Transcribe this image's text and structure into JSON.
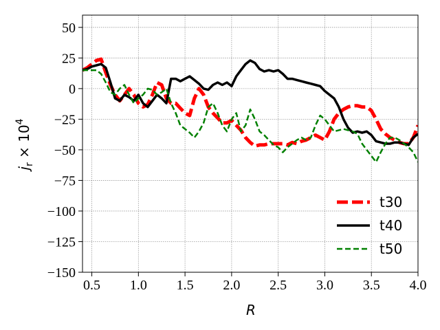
{
  "chart_data": {
    "type": "line",
    "title": "",
    "xlabel": "R",
    "ylabel_main": "j",
    "ylabel_sub": "r",
    "ylabel_tail": " × 10",
    "ylabel_exp": "4",
    "xlim": [
      0.4,
      4.0
    ],
    "ylim": [
      -150,
      60
    ],
    "xticks": [
      0.5,
      1.0,
      1.5,
      2.0,
      2.5,
      3.0,
      3.5,
      4.0
    ],
    "xtick_labels": [
      "0.5",
      "1.0",
      "1.5",
      "2.0",
      "2.5",
      "3.0",
      "3.5",
      "4.0"
    ],
    "yticks": [
      50,
      25,
      0,
      -25,
      -50,
      -75,
      -100,
      -125,
      -150
    ],
    "ytick_labels": [
      "50",
      "25",
      "0",
      "−25",
      "−50",
      "−75",
      "−100",
      "−125",
      "−150"
    ],
    "grid": true,
    "legend_position": "lower-right",
    "series": [
      {
        "name": "t30",
        "color": "#ff0000",
        "style": "dashed-thick",
        "x": [
          0.4,
          0.45,
          0.5,
          0.55,
          0.6,
          0.65,
          0.7,
          0.75,
          0.8,
          0.85,
          0.9,
          0.95,
          1.0,
          1.05,
          1.1,
          1.15,
          1.2,
          1.25,
          1.3,
          1.35,
          1.4,
          1.45,
          1.5,
          1.55,
          1.6,
          1.65,
          1.7,
          1.75,
          1.8,
          1.85,
          1.9,
          1.95,
          2.0,
          2.05,
          2.1,
          2.15,
          2.2,
          2.25,
          2.3,
          2.35,
          2.4,
          2.45,
          2.5,
          2.55,
          2.6,
          2.65,
          2.7,
          2.75,
          2.8,
          2.85,
          2.9,
          2.95,
          3.0,
          3.05,
          3.1,
          3.15,
          3.2,
          3.25,
          3.3,
          3.35,
          3.4,
          3.45,
          3.5,
          3.55,
          3.6,
          3.65,
          3.7,
          3.75,
          3.8,
          3.85,
          3.9,
          3.95,
          4.0
        ],
        "y": [
          15,
          17,
          20,
          23,
          24,
          13,
          3,
          -5,
          -10,
          -5,
          0,
          -5,
          -12,
          -15,
          -13,
          -5,
          5,
          3,
          -8,
          -12,
          -12,
          -16,
          -20,
          -22,
          -8,
          0,
          -5,
          -15,
          -20,
          -24,
          -28,
          -28,
          -26,
          -30,
          -34,
          -40,
          -44,
          -47,
          -46,
          -46,
          -45,
          -45,
          -45,
          -45,
          -46,
          -44,
          -45,
          -43,
          -42,
          -40,
          -38,
          -40,
          -42,
          -35,
          -25,
          -20,
          -17,
          -15,
          -14,
          -14,
          -15,
          -15,
          -18,
          -25,
          -33,
          -37,
          -40,
          -42,
          -44,
          -45,
          -45,
          -40,
          -30
        ]
      },
      {
        "name": "t40",
        "color": "#000000",
        "style": "solid",
        "x": [
          0.4,
          0.45,
          0.5,
          0.55,
          0.6,
          0.65,
          0.7,
          0.75,
          0.8,
          0.85,
          0.9,
          0.95,
          1.0,
          1.05,
          1.1,
          1.15,
          1.2,
          1.25,
          1.3,
          1.35,
          1.4,
          1.45,
          1.5,
          1.55,
          1.6,
          1.65,
          1.7,
          1.75,
          1.8,
          1.85,
          1.9,
          1.95,
          2.0,
          2.05,
          2.1,
          2.15,
          2.2,
          2.25,
          2.3,
          2.35,
          2.4,
          2.45,
          2.5,
          2.55,
          2.6,
          2.65,
          2.7,
          2.75,
          2.8,
          2.85,
          2.9,
          2.95,
          3.0,
          3.05,
          3.1,
          3.15,
          3.2,
          3.25,
          3.3,
          3.35,
          3.4,
          3.45,
          3.5,
          3.55,
          3.6,
          3.65,
          3.7,
          3.75,
          3.8,
          3.85,
          3.9,
          3.95,
          4.0
        ],
        "y": [
          15,
          16,
          18,
          19,
          20,
          17,
          5,
          -8,
          -10,
          -5,
          -7,
          -10,
          -5,
          -12,
          -15,
          -10,
          -5,
          -8,
          -12,
          8,
          8,
          6,
          8,
          10,
          7,
          4,
          0,
          -1,
          3,
          5,
          3,
          5,
          2,
          10,
          15,
          20,
          23,
          21,
          16,
          14,
          15,
          14,
          15,
          12,
          8,
          8,
          7,
          6,
          5,
          4,
          3,
          2,
          -2,
          -5,
          -8,
          -15,
          -25,
          -32,
          -36,
          -35,
          -36,
          -35,
          -38,
          -43,
          -44,
          -45,
          -45,
          -44,
          -44,
          -45,
          -46,
          -40,
          -37
        ]
      },
      {
        "name": "t50",
        "color": "#008000",
        "style": "dashed",
        "x": [
          0.4,
          0.45,
          0.5,
          0.55,
          0.6,
          0.65,
          0.7,
          0.75,
          0.8,
          0.85,
          0.9,
          0.95,
          1.0,
          1.05,
          1.1,
          1.15,
          1.2,
          1.25,
          1.3,
          1.35,
          1.4,
          1.45,
          1.5,
          1.55,
          1.6,
          1.65,
          1.7,
          1.75,
          1.8,
          1.85,
          1.9,
          1.95,
          2.0,
          2.05,
          2.1,
          2.15,
          2.2,
          2.25,
          2.3,
          2.35,
          2.4,
          2.45,
          2.5,
          2.55,
          2.6,
          2.65,
          2.7,
          2.75,
          2.8,
          2.85,
          2.9,
          2.95,
          3.0,
          3.05,
          3.1,
          3.15,
          3.2,
          3.25,
          3.3,
          3.35,
          3.4,
          3.45,
          3.5,
          3.55,
          3.6,
          3.65,
          3.7,
          3.75,
          3.8,
          3.85,
          3.9,
          3.95,
          4.0
        ],
        "y": [
          15,
          15,
          15,
          15,
          12,
          5,
          -3,
          -5,
          0,
          3,
          -5,
          -12,
          -8,
          -5,
          0,
          -1,
          -5,
          -3,
          0,
          -12,
          -20,
          -30,
          -33,
          -36,
          -40,
          -35,
          -28,
          -15,
          -12,
          -20,
          -30,
          -35,
          -25,
          -20,
          -35,
          -30,
          -17,
          -25,
          -35,
          -38,
          -42,
          -46,
          -48,
          -52,
          -48,
          -45,
          -42,
          -40,
          -42,
          -40,
          -30,
          -22,
          -25,
          -30,
          -35,
          -34,
          -33,
          -34,
          -35,
          -37,
          -45,
          -50,
          -55,
          -60,
          -52,
          -45,
          -40,
          -40,
          -42,
          -45,
          -48,
          -52,
          -60
        ]
      }
    ]
  }
}
